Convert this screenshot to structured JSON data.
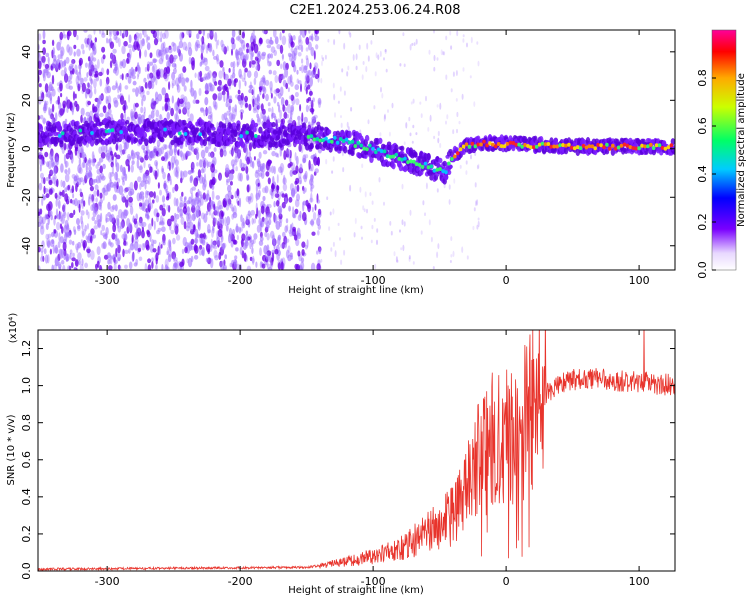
{
  "title": "C2E1.2024.253.06.24.R08",
  "colors": {
    "signal": "#e8342c",
    "wave": "#6a00e8",
    "scatter": "#a070ff"
  },
  "chart_data": [
    {
      "type": "heatmap",
      "xlabel": "Height of straight line (km)",
      "ylabel": "Frequency (Hz)",
      "xlim": [
        -352,
        127
      ],
      "ylim": [
        -50,
        49
      ],
      "xticks": [
        -300,
        -200,
        -100,
        0,
        100
      ],
      "yticks": [
        -40,
        -20,
        0,
        20,
        40
      ],
      "colorbar": {
        "label": "Normalized spectral amplitude",
        "range": [
          0,
          1
        ],
        "ticks": [
          0.0,
          0.2,
          0.4,
          0.6,
          0.8
        ],
        "colormap": "rainbow"
      },
      "ridge": {
        "x": [
          -350,
          -300,
          -250,
          -200,
          -150,
          -120,
          -100,
          -80,
          -60,
          -50,
          -45,
          -40,
          -30,
          -20,
          0,
          50,
          127
        ],
        "y": [
          6,
          7,
          7,
          6,
          5,
          3,
          0,
          -4,
          -7,
          -9,
          -9,
          -3,
          1,
          2,
          2,
          1,
          1
        ]
      }
    },
    {
      "type": "line",
      "xlabel": "Height of straight line (km)",
      "ylabel": "SNR (10 * v/v)",
      "multiplier": "(x10⁴)",
      "xlim": [
        -352,
        127
      ],
      "ylim": [
        0,
        1.3
      ],
      "xticks": [
        -300,
        -200,
        -100,
        0,
        100
      ],
      "yticks": [
        0.0,
        0.2,
        0.4,
        0.6,
        0.8,
        1.0,
        1.2
      ],
      "envelope": {
        "x": [
          -352,
          -150,
          -120,
          -100,
          -80,
          -60,
          -40,
          -30,
          -20,
          -10,
          0,
          10,
          20,
          30,
          40,
          60,
          80,
          100,
          127
        ],
        "y": [
          0.01,
          0.02,
          0.05,
          0.08,
          0.12,
          0.2,
          0.3,
          0.45,
          0.6,
          0.7,
          0.72,
          0.8,
          0.88,
          0.95,
          1.02,
          1.04,
          1.03,
          1.02,
          1.0
        ]
      }
    }
  ]
}
